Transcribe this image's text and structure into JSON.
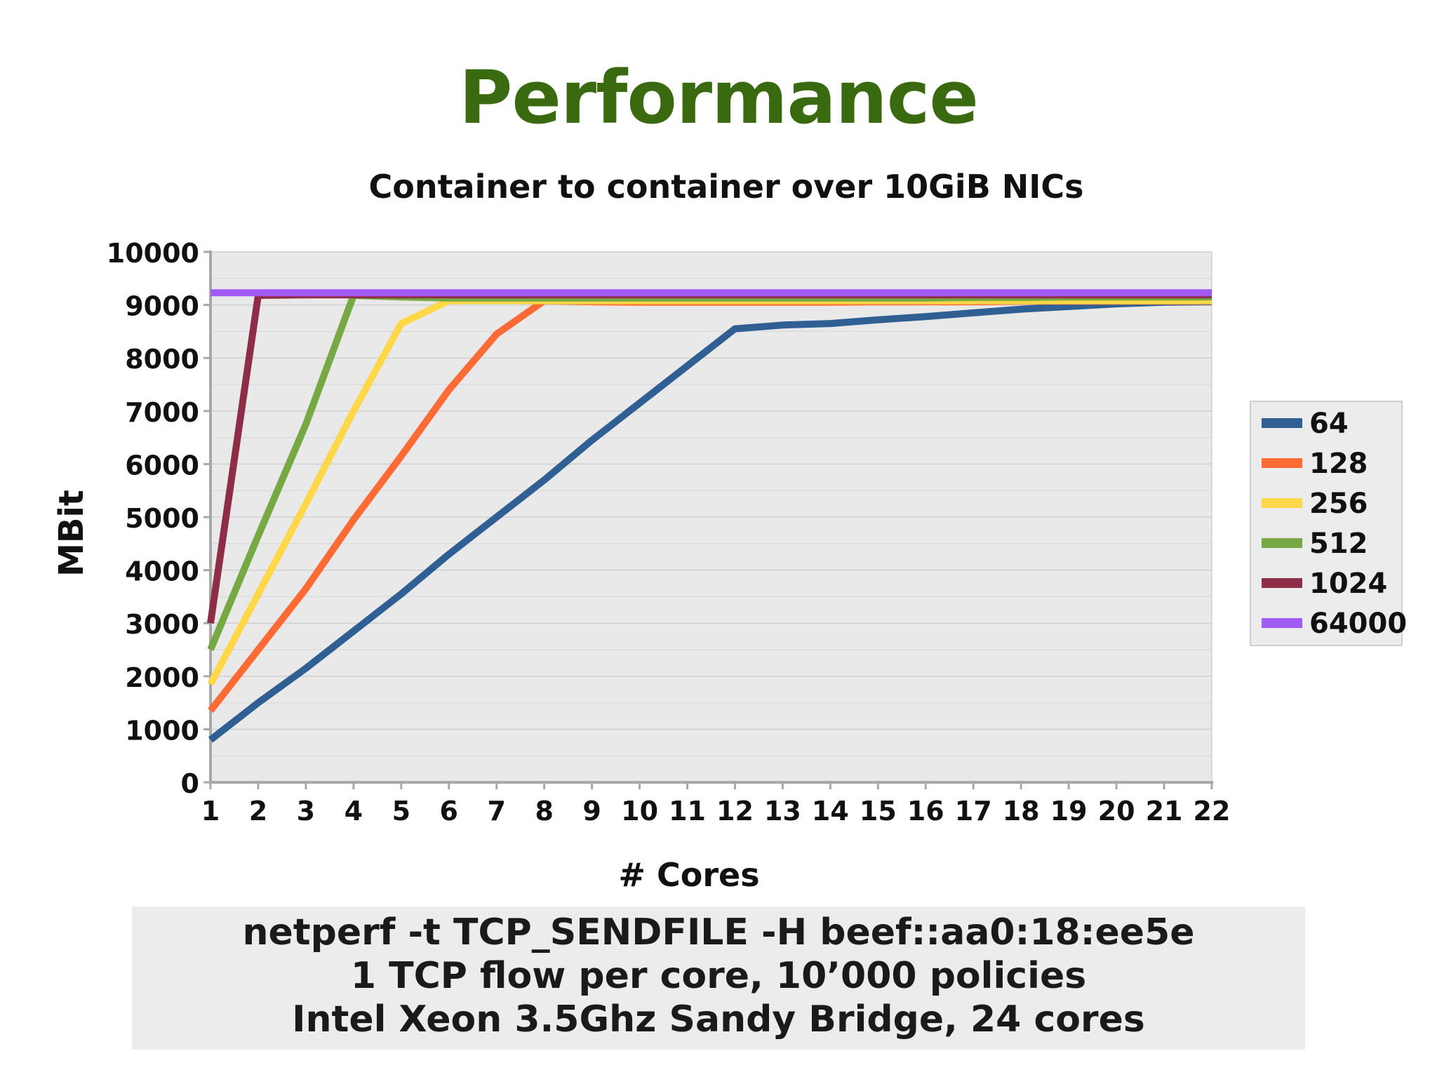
{
  "slide": {
    "title": "Performance",
    "footer_lines": [
      "netperf -t TCP_SENDFILE -H beef::aa0:18:ee5e",
      "1 TCP flow per core, 10’000 policies",
      "Intel Xeon 3.5Ghz Sandy Bridge, 24 cores"
    ]
  },
  "chart_data": {
    "type": "line",
    "title": "Container to container over 10GiB NICs",
    "xlabel": "# Cores",
    "ylabel": "MBit",
    "x": [
      1,
      2,
      3,
      4,
      5,
      6,
      7,
      8,
      9,
      10,
      11,
      12,
      13,
      14,
      15,
      16,
      17,
      18,
      19,
      20,
      21,
      22
    ],
    "ylim": [
      0,
      10000
    ],
    "yticks": [
      0,
      1000,
      2000,
      3000,
      4000,
      5000,
      6000,
      7000,
      8000,
      9000,
      10000
    ],
    "grid": true,
    "legend_position": "right",
    "series": [
      {
        "name": "64",
        "color": "#2f5f93",
        "values": [
          800,
          1500,
          2150,
          2850,
          3550,
          4300,
          5000,
          5700,
          6450,
          7150,
          7850,
          8550,
          8620,
          8650,
          8720,
          8780,
          8850,
          8920,
          8970,
          9020,
          9050,
          9060
        ]
      },
      {
        "name": "128",
        "color": "#ff6b35",
        "values": [
          1350,
          2500,
          3650,
          4950,
          6150,
          7400,
          8450,
          9080,
          9060,
          9050,
          9050,
          9050,
          9050,
          9050,
          9060,
          9060,
          9060,
          9070,
          9070,
          9070,
          9070,
          9070
        ]
      },
      {
        "name": "256",
        "color": "#ffd84a",
        "values": [
          1850,
          3550,
          5250,
          7000,
          8650,
          9080,
          9080,
          9080,
          9080,
          9080,
          9080,
          9080,
          9080,
          9080,
          9080,
          9080,
          9080,
          9080,
          9080,
          9080,
          9080,
          9080
        ]
      },
      {
        "name": "512",
        "color": "#76a844",
        "values": [
          2500,
          4650,
          6750,
          9180,
          9150,
          9130,
          9130,
          9130,
          9130,
          9130,
          9130,
          9130,
          9130,
          9130,
          9130,
          9130,
          9140,
          9140,
          9150,
          9150,
          9150,
          9150
        ]
      },
      {
        "name": "1024",
        "color": "#8e2d48",
        "values": [
          3000,
          9180,
          9190,
          9190,
          9190,
          9190,
          9190,
          9190,
          9190,
          9190,
          9190,
          9190,
          9190,
          9190,
          9190,
          9190,
          9190,
          9190,
          9190,
          9190,
          9190,
          9190
        ]
      },
      {
        "name": "64000",
        "color": "#a25af5",
        "values": [
          9230,
          9230,
          9230,
          9230,
          9230,
          9230,
          9230,
          9230,
          9230,
          9230,
          9230,
          9230,
          9230,
          9230,
          9230,
          9230,
          9230,
          9230,
          9230,
          9230,
          9230,
          9230
        ]
      }
    ]
  }
}
